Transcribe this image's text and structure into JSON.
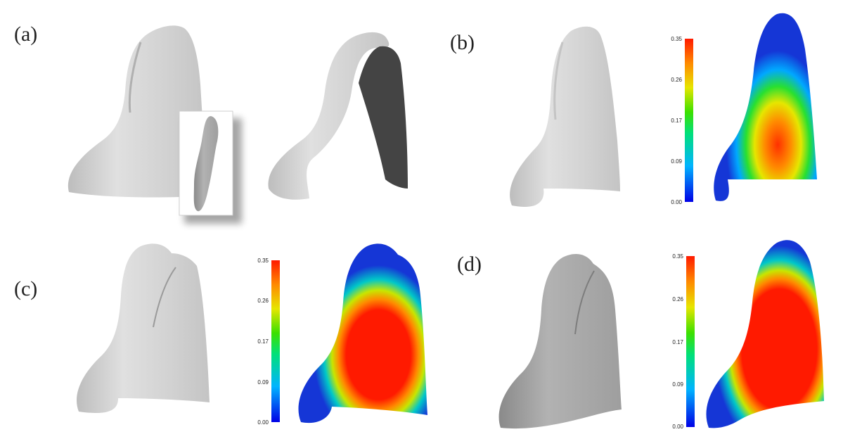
{
  "panels": [
    {
      "label": "(a)"
    },
    {
      "label": "(b)",
      "colorbar_ticks": [
        "0.35",
        "0.26",
        "0.17",
        "0.09",
        "0.00"
      ]
    },
    {
      "label": "(c)",
      "colorbar_ticks": [
        "0.35",
        "0.26",
        "0.17",
        "0.09",
        "0.00"
      ]
    },
    {
      "label": "(d)",
      "colorbar_ticks": [
        "0.35",
        "0.26",
        "0.17",
        "0.09",
        "0.00"
      ]
    }
  ],
  "colors": {
    "mesh_light": "#dcdcdc",
    "mesh_dark": "#a9a9a9",
    "cut_face": "#444444",
    "heat_low": "#1536d6",
    "heat_high": "#ff1a00"
  }
}
